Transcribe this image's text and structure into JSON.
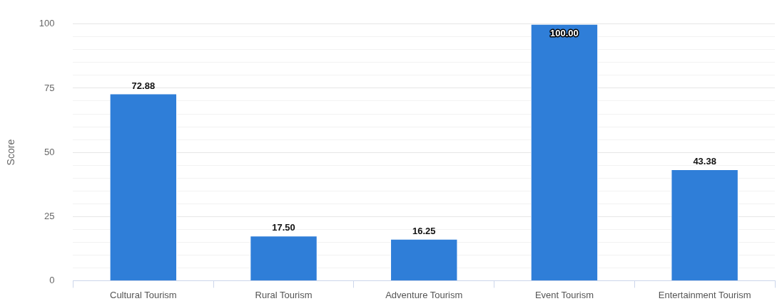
{
  "chart_data": {
    "type": "bar",
    "ylabel": "Score",
    "categories": [
      "Cultural Tourism",
      "Rural Tourism",
      "Adventure Tourism",
      "Event Tourism",
      "Entertainment Tourism"
    ],
    "values": [
      72.88,
      17.5,
      16.25,
      100,
      43.38
    ],
    "value_labels": [
      "72.88",
      "17.50",
      "16.25",
      "100.00",
      "43.38"
    ],
    "color": "#2f7ed8",
    "ylim": [
      0,
      100
    ],
    "yticks": [
      0,
      {
        "value": 5,
        "label": null
      },
      {
        "value": 10,
        "label": null
      },
      {
        "value": 15,
        "label": null
      },
      {
        "value": 20,
        "label": null
      },
      25,
      {
        "value": 30,
        "label": null
      },
      {
        "value": 35,
        "label": null
      },
      {
        "value": 40,
        "label": null
      },
      {
        "value": 45,
        "label": null
      },
      50,
      {
        "value": 55,
        "label": null
      },
      {
        "value": 60,
        "label": null
      },
      {
        "value": 65,
        "label": null
      },
      {
        "value": 70,
        "label": null
      },
      75,
      {
        "value": 80,
        "label": null
      },
      {
        "value": 85,
        "label": null
      },
      {
        "value": 90,
        "label": null
      },
      {
        "value": 95,
        "label": null
      },
      100
    ],
    "grid": "y",
    "legend": false
  }
}
